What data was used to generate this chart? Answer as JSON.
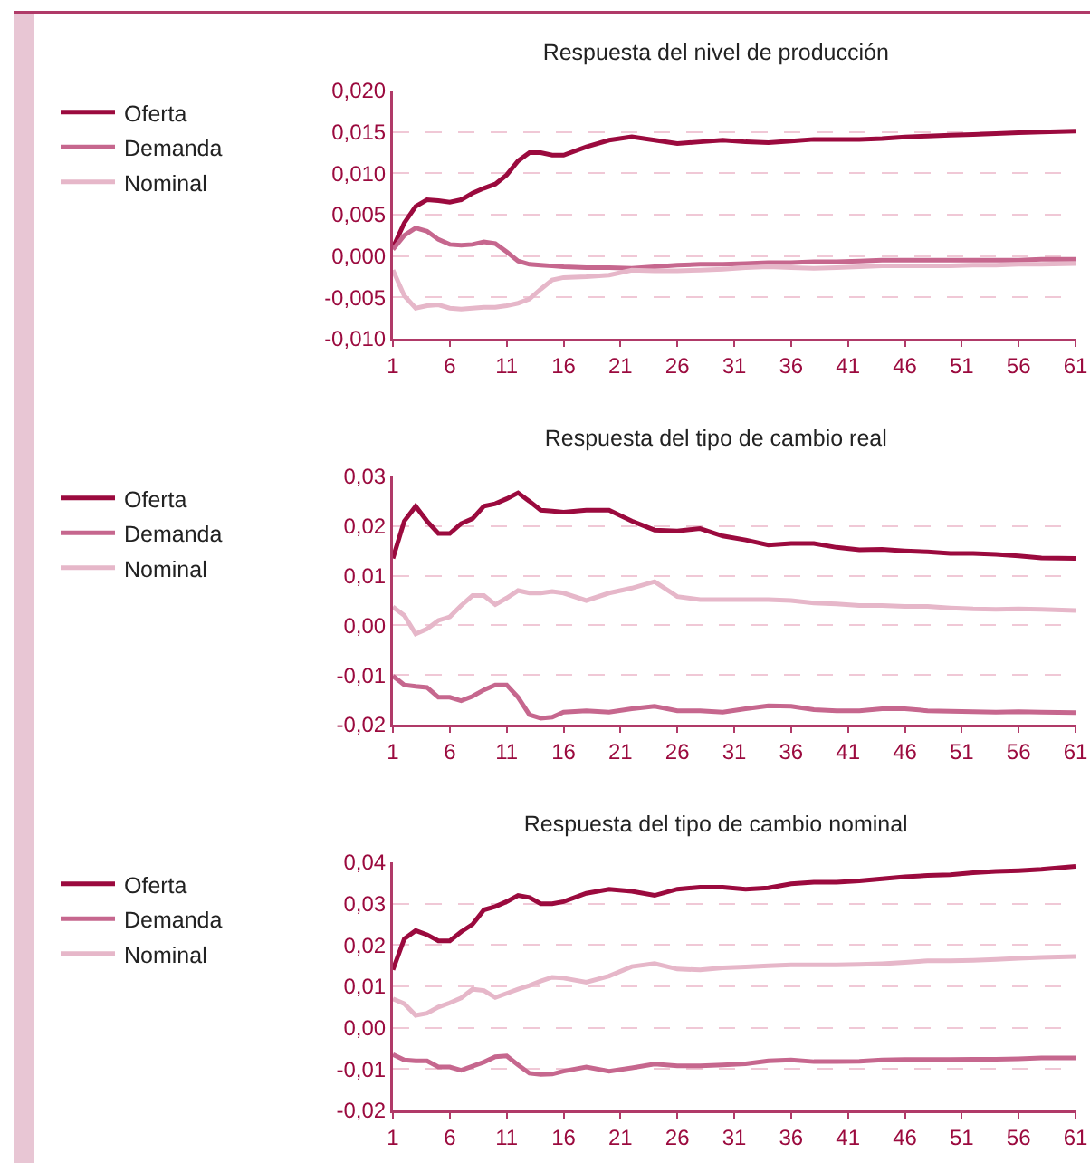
{
  "chart_data": [
    {
      "type": "line",
      "title": "Respuesta del nivel de producción",
      "legend": "left",
      "grid": "y",
      "line_style": "solid",
      "marker": "none",
      "x": [
        1,
        2,
        3,
        4,
        5,
        6,
        7,
        8,
        9,
        10,
        11,
        12,
        13,
        14,
        15,
        16,
        18,
        20,
        22,
        24,
        26,
        28,
        30,
        32,
        34,
        36,
        38,
        40,
        42,
        44,
        46,
        48,
        50,
        52,
        54,
        56,
        58,
        61
      ],
      "xlim": [
        1,
        61
      ],
      "xticks": [
        1,
        6,
        11,
        16,
        21,
        26,
        31,
        36,
        41,
        46,
        51,
        56,
        61
      ],
      "ylim": [
        -0.01,
        0.02
      ],
      "yticks": [
        {
          "value": -0.01,
          "label": "-0,010"
        },
        {
          "value": -0.005,
          "label": "-0,005"
        },
        {
          "value": 0,
          "label": "0,000"
        },
        {
          "value": 0.005,
          "label": "0,005"
        },
        {
          "value": 0.01,
          "label": "0,010"
        },
        {
          "value": 0.015,
          "label": "0,015"
        },
        {
          "value": 0.02,
          "label": "0,020"
        }
      ],
      "series": [
        {
          "name": "Oferta",
          "color": "#9b0a3e",
          "values": [
            0.001,
            0.004,
            0.006,
            0.0068,
            0.0067,
            0.0065,
            0.0068,
            0.0076,
            0.0082,
            0.0087,
            0.0098,
            0.0115,
            0.0125,
            0.0125,
            0.0122,
            0.0122,
            0.0132,
            0.014,
            0.0144,
            0.014,
            0.0136,
            0.0138,
            0.014,
            0.0138,
            0.0137,
            0.0139,
            0.0141,
            0.0141,
            0.0141,
            0.0142,
            0.0144,
            0.0145,
            0.0146,
            0.0147,
            0.0148,
            0.0149,
            0.015,
            0.0151
          ]
        },
        {
          "name": "Demanda",
          "color": "#c6678e",
          "values": [
            0.0008,
            0.0025,
            0.0034,
            0.003,
            0.002,
            0.0014,
            0.0013,
            0.0014,
            0.0017,
            0.0015,
            0.0005,
            -0.0006,
            -0.001,
            -0.0011,
            -0.0012,
            -0.0013,
            -0.0014,
            -0.0014,
            -0.0015,
            -0.0013,
            -0.0011,
            -0.001,
            -0.001,
            -0.0009,
            -0.0008,
            -0.0008,
            -0.0007,
            -0.0007,
            -0.0006,
            -0.0005,
            -0.0005,
            -0.0005,
            -0.0005,
            -0.0005,
            -0.0005,
            -0.0005,
            -0.0004,
            -0.0004
          ]
        },
        {
          "name": "Nominal",
          "color": "#e6b7c9",
          "values": [
            -0.0017,
            -0.0048,
            -0.0063,
            -0.006,
            -0.0059,
            -0.0063,
            -0.0064,
            -0.0063,
            -0.0062,
            -0.0062,
            -0.006,
            -0.0057,
            -0.0052,
            -0.004,
            -0.0029,
            -0.0026,
            -0.0025,
            -0.0023,
            -0.0017,
            -0.0018,
            -0.0018,
            -0.0017,
            -0.0016,
            -0.0014,
            -0.0013,
            -0.0014,
            -0.0015,
            -0.0014,
            -0.0013,
            -0.0012,
            -0.0012,
            -0.0012,
            -0.0012,
            -0.0011,
            -0.0011,
            -0.001,
            -0.001,
            -0.0009
          ]
        }
      ]
    },
    {
      "type": "line",
      "title": "Respuesta del tipo de cambio real",
      "legend": "left",
      "grid": "y",
      "line_style": "solid",
      "marker": "none",
      "x": [
        1,
        2,
        3,
        4,
        5,
        6,
        7,
        8,
        9,
        10,
        11,
        12,
        13,
        14,
        15,
        16,
        18,
        20,
        22,
        24,
        26,
        28,
        30,
        32,
        34,
        36,
        38,
        40,
        42,
        44,
        46,
        48,
        50,
        52,
        54,
        56,
        58,
        61
      ],
      "xlim": [
        1,
        61
      ],
      "xticks": [
        1,
        6,
        11,
        16,
        21,
        26,
        31,
        36,
        41,
        46,
        51,
        56,
        61
      ],
      "ylim": [
        -0.02,
        0.03
      ],
      "yticks": [
        {
          "value": -0.02,
          "label": "-0,02"
        },
        {
          "value": -0.01,
          "label": "-0,01"
        },
        {
          "value": 0,
          "label": "0,00"
        },
        {
          "value": 0.01,
          "label": "0,01"
        },
        {
          "value": 0.02,
          "label": "0,02"
        },
        {
          "value": 0.03,
          "label": "0,03"
        }
      ],
      "series": [
        {
          "name": "Oferta",
          "color": "#9b0a3e",
          "values": [
            0.0135,
            0.021,
            0.024,
            0.021,
            0.0185,
            0.0185,
            0.0205,
            0.0215,
            0.024,
            0.0245,
            0.0255,
            0.0267,
            0.025,
            0.0232,
            0.023,
            0.0228,
            0.0232,
            0.0232,
            0.021,
            0.0192,
            0.019,
            0.0195,
            0.018,
            0.0172,
            0.0162,
            0.0165,
            0.0165,
            0.0157,
            0.0152,
            0.0153,
            0.015,
            0.0148,
            0.0145,
            0.0145,
            0.0143,
            0.014,
            0.0136,
            0.0135
          ]
        },
        {
          "name": "Demanda",
          "color": "#c6678e",
          "values": [
            -0.0102,
            -0.012,
            -0.0123,
            -0.0125,
            -0.0145,
            -0.0145,
            -0.0152,
            -0.0143,
            -0.013,
            -0.012,
            -0.012,
            -0.0145,
            -0.018,
            -0.0187,
            -0.0185,
            -0.0175,
            -0.0172,
            -0.0175,
            -0.0168,
            -0.0163,
            -0.0172,
            -0.0172,
            -0.0175,
            -0.0168,
            -0.0162,
            -0.0163,
            -0.017,
            -0.0172,
            -0.0172,
            -0.0168,
            -0.0168,
            -0.0172,
            -0.0173,
            -0.0174,
            -0.0175,
            -0.0174,
            -0.0175,
            -0.0176
          ]
        },
        {
          "name": "Nominal",
          "color": "#e6b7c9",
          "values": [
            0.0037,
            0.002,
            -0.0017,
            -0.0007,
            0.001,
            0.0017,
            0.004,
            0.006,
            0.006,
            0.0042,
            0.0055,
            0.007,
            0.0065,
            0.0065,
            0.0068,
            0.0065,
            0.005,
            0.0065,
            0.0075,
            0.0088,
            0.0058,
            0.0052,
            0.0052,
            0.0052,
            0.0052,
            0.005,
            0.0045,
            0.0043,
            0.004,
            0.004,
            0.0038,
            0.0038,
            0.0035,
            0.0033,
            0.0032,
            0.0033,
            0.0032,
            0.003
          ]
        }
      ]
    },
    {
      "type": "line",
      "title": "Respuesta del tipo de cambio nominal",
      "legend": "left",
      "grid": "y",
      "line_style": "solid",
      "marker": "none",
      "x": [
        1,
        2,
        3,
        4,
        5,
        6,
        7,
        8,
        9,
        10,
        11,
        12,
        13,
        14,
        15,
        16,
        18,
        20,
        22,
        24,
        26,
        28,
        30,
        32,
        34,
        36,
        38,
        40,
        42,
        44,
        46,
        48,
        50,
        52,
        54,
        56,
        58,
        61
      ],
      "xlim": [
        1,
        61
      ],
      "xticks": [
        1,
        6,
        11,
        16,
        21,
        26,
        31,
        36,
        41,
        46,
        51,
        56,
        61
      ],
      "ylim": [
        -0.02,
        0.04
      ],
      "yticks": [
        {
          "value": -0.02,
          "label": "-0,02"
        },
        {
          "value": -0.01,
          "label": "-0,01"
        },
        {
          "value": 0,
          "label": "0,00"
        },
        {
          "value": 0.01,
          "label": "0,01"
        },
        {
          "value": 0.02,
          "label": "0,02"
        },
        {
          "value": 0.03,
          "label": "0,03"
        },
        {
          "value": 0.04,
          "label": "0,04"
        }
      ],
      "series": [
        {
          "name": "Oferta",
          "color": "#9b0a3e",
          "values": [
            0.014,
            0.0215,
            0.0235,
            0.0225,
            0.021,
            0.021,
            0.0232,
            0.025,
            0.0285,
            0.0293,
            0.0305,
            0.032,
            0.0315,
            0.03,
            0.03,
            0.0305,
            0.0325,
            0.0335,
            0.033,
            0.032,
            0.0335,
            0.034,
            0.034,
            0.0335,
            0.0338,
            0.0348,
            0.0352,
            0.0352,
            0.0355,
            0.036,
            0.0365,
            0.0368,
            0.037,
            0.0375,
            0.0378,
            0.038,
            0.0383,
            0.039
          ]
        },
        {
          "name": "Demanda",
          "color": "#c6678e",
          "values": [
            -0.0065,
            -0.0078,
            -0.008,
            -0.008,
            -0.0095,
            -0.0095,
            -0.0103,
            -0.0093,
            -0.0083,
            -0.007,
            -0.0068,
            -0.009,
            -0.011,
            -0.0113,
            -0.0112,
            -0.0105,
            -0.0095,
            -0.0105,
            -0.0097,
            -0.0088,
            -0.0092,
            -0.0092,
            -0.009,
            -0.0087,
            -0.008,
            -0.0078,
            -0.0082,
            -0.0082,
            -0.0081,
            -0.0078,
            -0.0077,
            -0.0077,
            -0.0077,
            -0.0076,
            -0.0076,
            -0.0075,
            -0.0073,
            -0.0073
          ]
        },
        {
          "name": "Nominal",
          "color": "#e6b7c9",
          "values": [
            0.007,
            0.0058,
            0.003,
            0.0035,
            0.005,
            0.006,
            0.0072,
            0.0093,
            0.009,
            0.0073,
            0.0083,
            0.0093,
            0.0102,
            0.0113,
            0.0122,
            0.012,
            0.011,
            0.0125,
            0.0148,
            0.0155,
            0.0142,
            0.014,
            0.0145,
            0.0147,
            0.015,
            0.0152,
            0.0152,
            0.0152,
            0.0153,
            0.0155,
            0.0158,
            0.0162,
            0.0162,
            0.0163,
            0.0165,
            0.0168,
            0.017,
            0.0172
          ]
        }
      ]
    }
  ]
}
